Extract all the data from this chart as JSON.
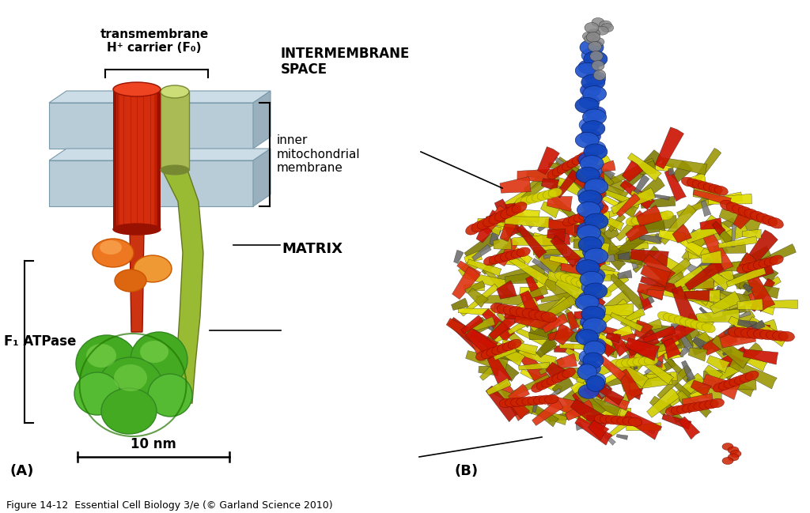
{
  "figure_caption": "Figure 14-12  Essential Cell Biology 3/e (© Garland Science 2010)",
  "label_A": "(A)",
  "label_B": "(B)",
  "label_10nm": "10 nm",
  "label_F1": "F₁ ATPase",
  "label_transmembrane": "transmembrane\nH⁺ carrier (F₀)",
  "label_intermembrane": "INTERMEMBRANE\nSPACE",
  "label_inner_membrane": "inner\nmitochondrial\nmembrane",
  "label_matrix": "MATRIX",
  "bg_color": "#ffffff",
  "membrane_color_front": "#b8ccd8",
  "membrane_color_top": "#ccdde8",
  "membrane_color_side": "#9ab0be",
  "membrane_edge": "#7a9aaa",
  "fo_red": "#cc2200",
  "fo_red_dark": "#991100",
  "fo_red_light": "#ee4422",
  "fo_green": "#aabb55",
  "fo_green_dark": "#778833",
  "stalk_green": "#99bb33",
  "stalk_green_dark": "#667722",
  "f1_red": "#cc3311",
  "f1_orange": "#ee7722",
  "f1_orange2": "#ee9933",
  "f1_orange_dark": "#cc5500",
  "f1_green_dark": "#227700",
  "f1_green_mid": "#338822",
  "f1_green": "#44aa22",
  "f1_green_light": "#77cc44",
  "f1_green_pale": "#aaddaa",
  "text_color": "#000000",
  "caption_fontsize": 9,
  "annot_fontsize": 11
}
